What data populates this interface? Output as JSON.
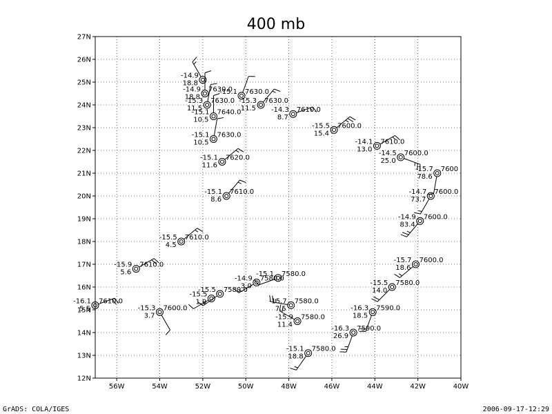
{
  "title": "400 mb",
  "footer": {
    "left": "GrADS: COLA/IGES",
    "right": "2006-09-17-12:29"
  },
  "colors": {
    "background": "#ffffff",
    "ink": "#000000",
    "grid": "#000000"
  },
  "chart_data": {
    "type": "scatter",
    "title": "400 mb",
    "xlabel": "",
    "ylabel": "",
    "xlim": [
      -57,
      -40
    ],
    "ylim": [
      12,
      27
    ],
    "grid": true,
    "x_ticks": [
      {
        "value": -56,
        "label": "56W"
      },
      {
        "value": -54,
        "label": "54W"
      },
      {
        "value": -52,
        "label": "52W"
      },
      {
        "value": -50,
        "label": "50W"
      },
      {
        "value": -48,
        "label": "48W"
      },
      {
        "value": -46,
        "label": "46W"
      },
      {
        "value": -44,
        "label": "44W"
      },
      {
        "value": -42,
        "label": "42W"
      },
      {
        "value": -40,
        "label": "40W"
      }
    ],
    "y_ticks": [
      {
        "value": 12,
        "label": "12N"
      },
      {
        "value": 13,
        "label": "13N"
      },
      {
        "value": 14,
        "label": "14N"
      },
      {
        "value": 15,
        "label": "15N"
      },
      {
        "value": 16,
        "label": "16N"
      },
      {
        "value": 17,
        "label": "17N"
      },
      {
        "value": 18,
        "label": "18N"
      },
      {
        "value": 19,
        "label": "19N"
      },
      {
        "value": 20,
        "label": "20N"
      },
      {
        "value": 21,
        "label": "21N"
      },
      {
        "value": 22,
        "label": "22N"
      },
      {
        "value": 23,
        "label": "23N"
      },
      {
        "value": 24,
        "label": "24N"
      },
      {
        "value": 25,
        "label": "25N"
      },
      {
        "value": 26,
        "label": "26N"
      },
      {
        "value": 27,
        "label": "27N"
      }
    ],
    "stations": [
      {
        "lon": -52.0,
        "lat": 25.1,
        "temp": "-14.9",
        "dew": "18.8",
        "height": "",
        "wdir": 330,
        "wspd": 15
      },
      {
        "lon": -51.9,
        "lat": 24.5,
        "temp": "-14.9",
        "dew": "18.8",
        "height": "7630.0",
        "wdir": 0,
        "wspd": 10
      },
      {
        "lon": -50.2,
        "lat": 24.4,
        "temp": "-15.1",
        "dew": "",
        "height": "7630.0",
        "wdir": 20,
        "wspd": 10
      },
      {
        "lon": -51.8,
        "lat": 24.0,
        "temp": "-15.3",
        "dew": "11.5",
        "height": "7630.0",
        "wdir": 10,
        "wspd": 10
      },
      {
        "lon": -49.3,
        "lat": 24.0,
        "temp": "-15.3",
        "dew": "11.5",
        "height": "7630.0",
        "wdir": 40,
        "wspd": 15
      },
      {
        "lon": -51.5,
        "lat": 23.5,
        "temp": "-15.1",
        "dew": "10.5",
        "height": "7640.0",
        "wdir": 0,
        "wspd": 10
      },
      {
        "lon": -47.8,
        "lat": 23.6,
        "temp": "-14.3",
        "dew": "8.7",
        "height": "7610.0",
        "wdir": 70,
        "wspd": 15
      },
      {
        "lon": -45.9,
        "lat": 22.9,
        "temp": "-15.5",
        "dew": "15.4",
        "height": "7600.0",
        "wdir": 50,
        "wspd": 25
      },
      {
        "lon": -51.5,
        "lat": 22.5,
        "temp": "-15.1",
        "dew": "10.5",
        "height": "7630.0",
        "wdir": 10,
        "wspd": 10
      },
      {
        "lon": -43.9,
        "lat": 22.2,
        "temp": "-14.1",
        "dew": "13.0",
        "height": "7610.0",
        "wdir": 60,
        "wspd": 15
      },
      {
        "lon": -42.8,
        "lat": 21.7,
        "temp": "-14.5",
        "dew": "25.0",
        "height": "7600.0",
        "wdir": 110,
        "wspd": 25
      },
      {
        "lon": -51.1,
        "lat": 21.5,
        "temp": "-15.1",
        "dew": "11.6",
        "height": "7620.0",
        "wdir": 50,
        "wspd": 15
      },
      {
        "lon": -41.1,
        "lat": 21.0,
        "temp": "-15.7",
        "dew": "78.6",
        "height": "7600",
        "wdir": 190,
        "wspd": 10
      },
      {
        "lon": -50.9,
        "lat": 20.0,
        "temp": "-15.1",
        "dew": "8.6",
        "height": "7610.0",
        "wdir": 40,
        "wspd": 15
      },
      {
        "lon": -41.4,
        "lat": 20.0,
        "temp": "-14.7",
        "dew": "73.7",
        "height": "7600.0",
        "wdir": 210,
        "wspd": 15
      },
      {
        "lon": -41.9,
        "lat": 18.9,
        "temp": "-14.9",
        "dew": "83.4",
        "height": "7600.0",
        "wdir": 220,
        "wspd": 25
      },
      {
        "lon": -53.0,
        "lat": 18.0,
        "temp": "-15.5",
        "dew": "4.5",
        "height": "7610.0",
        "wdir": 50,
        "wspd": 15
      },
      {
        "lon": -55.1,
        "lat": 16.8,
        "temp": "-15.9",
        "dew": "5.6",
        "height": "7610.0",
        "wdir": 60,
        "wspd": 20
      },
      {
        "lon": -42.1,
        "lat": 17.0,
        "temp": "-15.7",
        "dew": "18.6",
        "height": "7600.0",
        "wdir": 230,
        "wspd": 15
      },
      {
        "lon": -48.5,
        "lat": 16.4,
        "temp": "-15.1",
        "dew": "",
        "height": "7580.0",
        "wdir": 250,
        "wspd": 10
      },
      {
        "lon": -49.5,
        "lat": 16.2,
        "temp": "-14.9",
        "dew": "3.0",
        "height": "7580.0",
        "wdir": 240,
        "wspd": 15
      },
      {
        "lon": -43.2,
        "lat": 16.0,
        "temp": "-15.5",
        "dew": "14.0",
        "height": "7580.0",
        "wdir": 225,
        "wspd": 20
      },
      {
        "lon": -51.2,
        "lat": 15.7,
        "temp": "-15.5",
        "dew": "",
        "height": "7580.0",
        "wdir": 235,
        "wspd": 15
      },
      {
        "lon": -51.6,
        "lat": 15.5,
        "temp": "-15.5",
        "dew": "1.9",
        "height": "",
        "wdir": 240,
        "wspd": 10
      },
      {
        "lon": -57.0,
        "lat": 15.2,
        "temp": "-16.1",
        "dew": "5.5",
        "height": "7610.0",
        "wdir": 70,
        "wspd": 20
      },
      {
        "lon": -47.9,
        "lat": 15.2,
        "temp": "-15.7",
        "dew": "7.5",
        "height": "7580.0",
        "wdir": 280,
        "wspd": 25
      },
      {
        "lon": -54.0,
        "lat": 14.9,
        "temp": "-15.3",
        "dew": "3.7",
        "height": "7600.0",
        "wdir": 150,
        "wspd": 10
      },
      {
        "lon": -44.1,
        "lat": 14.9,
        "temp": "-16.3",
        "dew": "18.5",
        "height": "7590.0",
        "wdir": 200,
        "wspd": 20
      },
      {
        "lon": -47.6,
        "lat": 14.5,
        "temp": "-15.9",
        "dew": "11.4",
        "height": "7580.0",
        "wdir": 300,
        "wspd": 20
      },
      {
        "lon": -45.0,
        "lat": 14.0,
        "temp": "-16.3",
        "dew": "26.9",
        "height": "7590.0",
        "wdir": 200,
        "wspd": 25
      },
      {
        "lon": -47.1,
        "lat": 13.1,
        "temp": "-15.1",
        "dew": "18.8",
        "height": "7580.0",
        "wdir": 215,
        "wspd": 15
      }
    ]
  }
}
